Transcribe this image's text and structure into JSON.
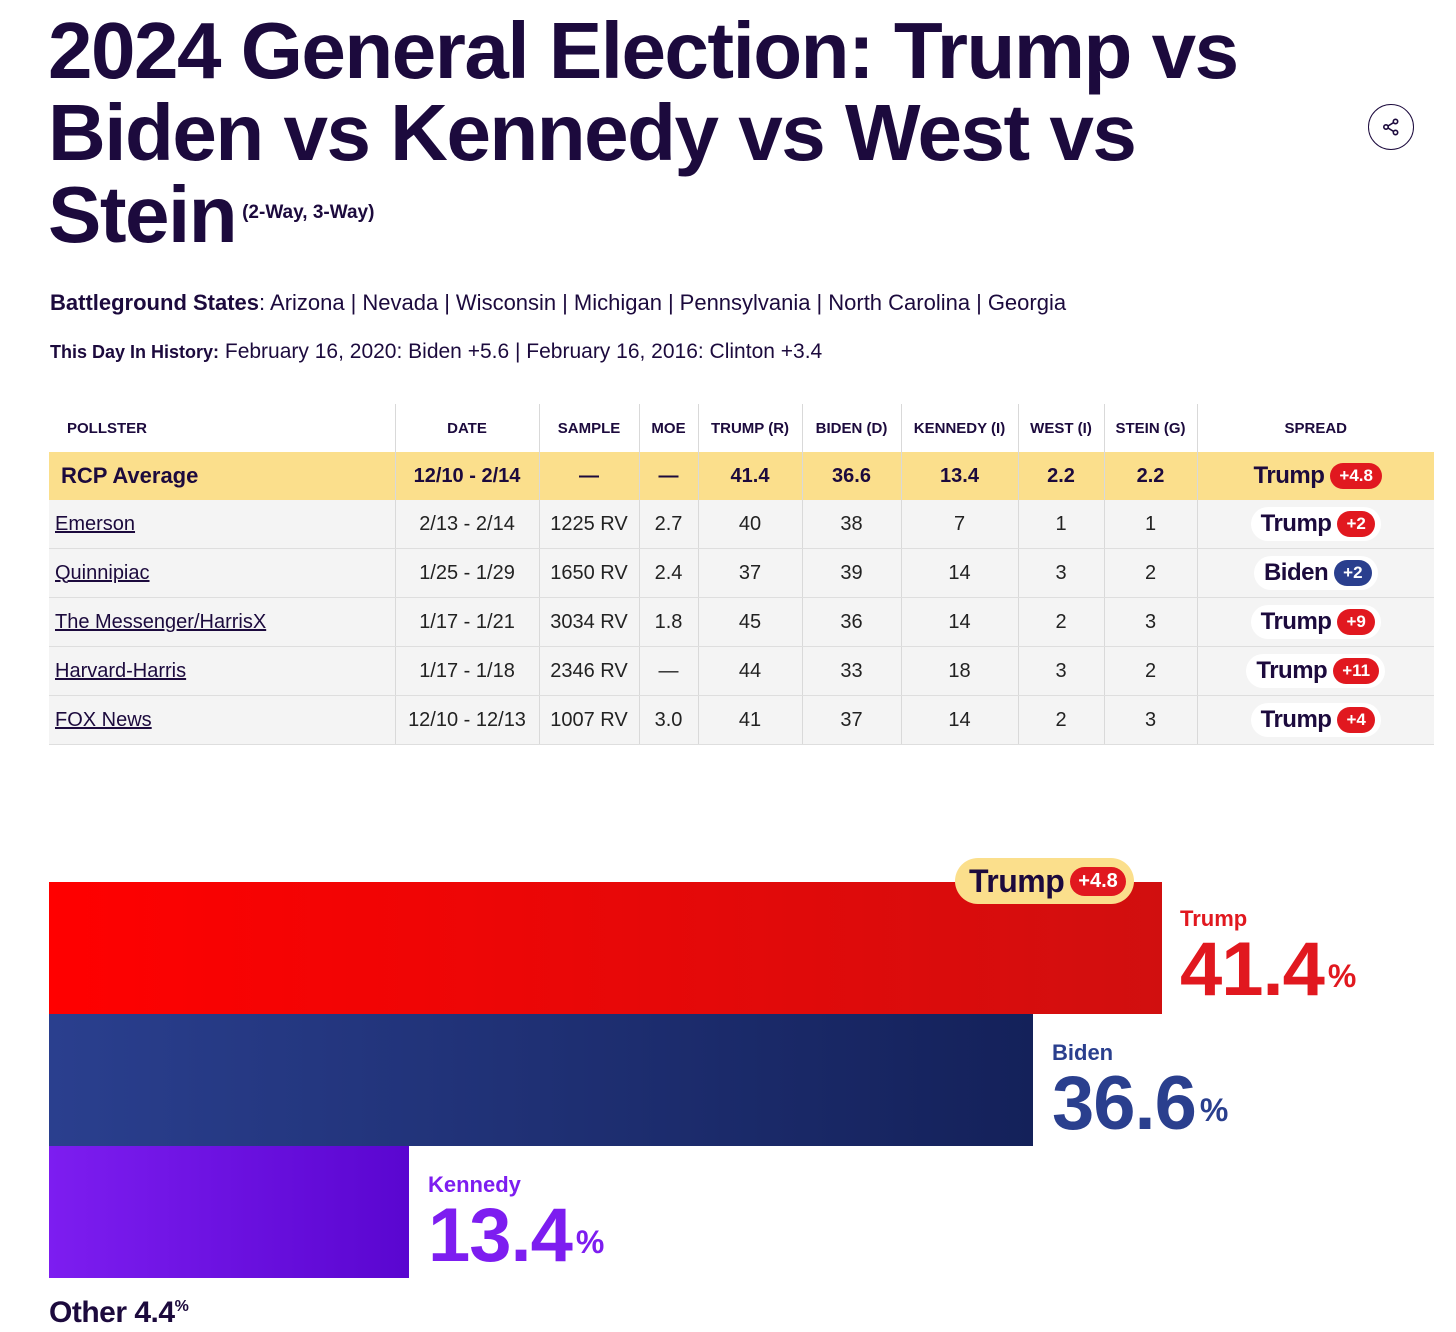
{
  "title": {
    "main": "2024 General Election: Trump vs Biden vs Kennedy vs West vs Stein",
    "sub": "(2-Way, 3-Way)"
  },
  "battleground": {
    "label": "Battleground States",
    "states": [
      "Arizona",
      "Nevada",
      "Wisconsin",
      "Michigan",
      "Pennsylvania",
      "North Carolina",
      "Georgia"
    ]
  },
  "history": {
    "label": "This Day In History:",
    "text": "February 16, 2020: Biden +5.6 | February 16, 2016: Clinton +3.4"
  },
  "table": {
    "columns": [
      "POLLSTER",
      "DATE",
      "SAMPLE",
      "MOE",
      "TRUMP (R)",
      "BIDEN (D)",
      "KENNEDY (I)",
      "WEST (I)",
      "STEIN (G)",
      "SPREAD"
    ],
    "average": {
      "pollster": "RCP Average",
      "date": "12/10 - 2/14",
      "sample": "—",
      "moe": "—",
      "trump": "41.4",
      "biden": "36.6",
      "kennedy": "13.4",
      "west": "2.2",
      "stein": "2.2",
      "spread_name": "Trump",
      "spread_value": "+4.8"
    },
    "rows": [
      {
        "pollster": "Emerson",
        "date": "2/13 - 2/14",
        "sample": "1225 RV",
        "moe": "2.7",
        "trump": "40",
        "biden": "38",
        "kennedy": "7",
        "west": "1",
        "stein": "1",
        "spread_name": "Trump",
        "spread_value": "+2",
        "spread_party": "R"
      },
      {
        "pollster": "Quinnipiac",
        "date": "1/25 - 1/29",
        "sample": "1650 RV",
        "moe": "2.4",
        "trump": "37",
        "biden": "39",
        "kennedy": "14",
        "west": "3",
        "stein": "2",
        "spread_name": "Biden",
        "spread_value": "+2",
        "spread_party": "D"
      },
      {
        "pollster": "The Messenger/HarrisX",
        "date": "1/17 - 1/21",
        "sample": "3034 RV",
        "moe": "1.8",
        "trump": "45",
        "biden": "36",
        "kennedy": "14",
        "west": "2",
        "stein": "3",
        "spread_name": "Trump",
        "spread_value": "+9",
        "spread_party": "R"
      },
      {
        "pollster": "Harvard-Harris",
        "date": "1/17 - 1/18",
        "sample": "2346 RV",
        "moe": "—",
        "trump": "44",
        "biden": "33",
        "kennedy": "18",
        "west": "3",
        "stein": "2",
        "spread_name": "Trump",
        "spread_value": "+11",
        "spread_party": "R"
      },
      {
        "pollster": "FOX News",
        "date": "12/10 - 12/13",
        "sample": "1007 RV",
        "moe": "3.0",
        "trump": "41",
        "biden": "37",
        "kennedy": "14",
        "west": "2",
        "stein": "3",
        "spread_name": "Trump",
        "spread_value": "+4",
        "spread_party": "R"
      }
    ]
  },
  "bars": {
    "badge_name": "Trump",
    "badge_value": "+4.8",
    "trump": {
      "name": "Trump",
      "value": "41.4",
      "unit": "%",
      "share": 41.4
    },
    "biden": {
      "name": "Biden",
      "value": "36.6",
      "unit": "%",
      "share": 36.6
    },
    "kennedy": {
      "name": "Kennedy",
      "value": "13.4",
      "unit": "%",
      "share": 13.4
    },
    "other": {
      "label": "Other 4.4",
      "unit": "%"
    }
  },
  "icons": {
    "share": "share-icon"
  },
  "colors": {
    "republican": "#e1181f",
    "democrat": "#2a3f8e",
    "independent": "#7d1df0",
    "highlight": "#fbdf8c",
    "text": "#1c0a3d"
  }
}
